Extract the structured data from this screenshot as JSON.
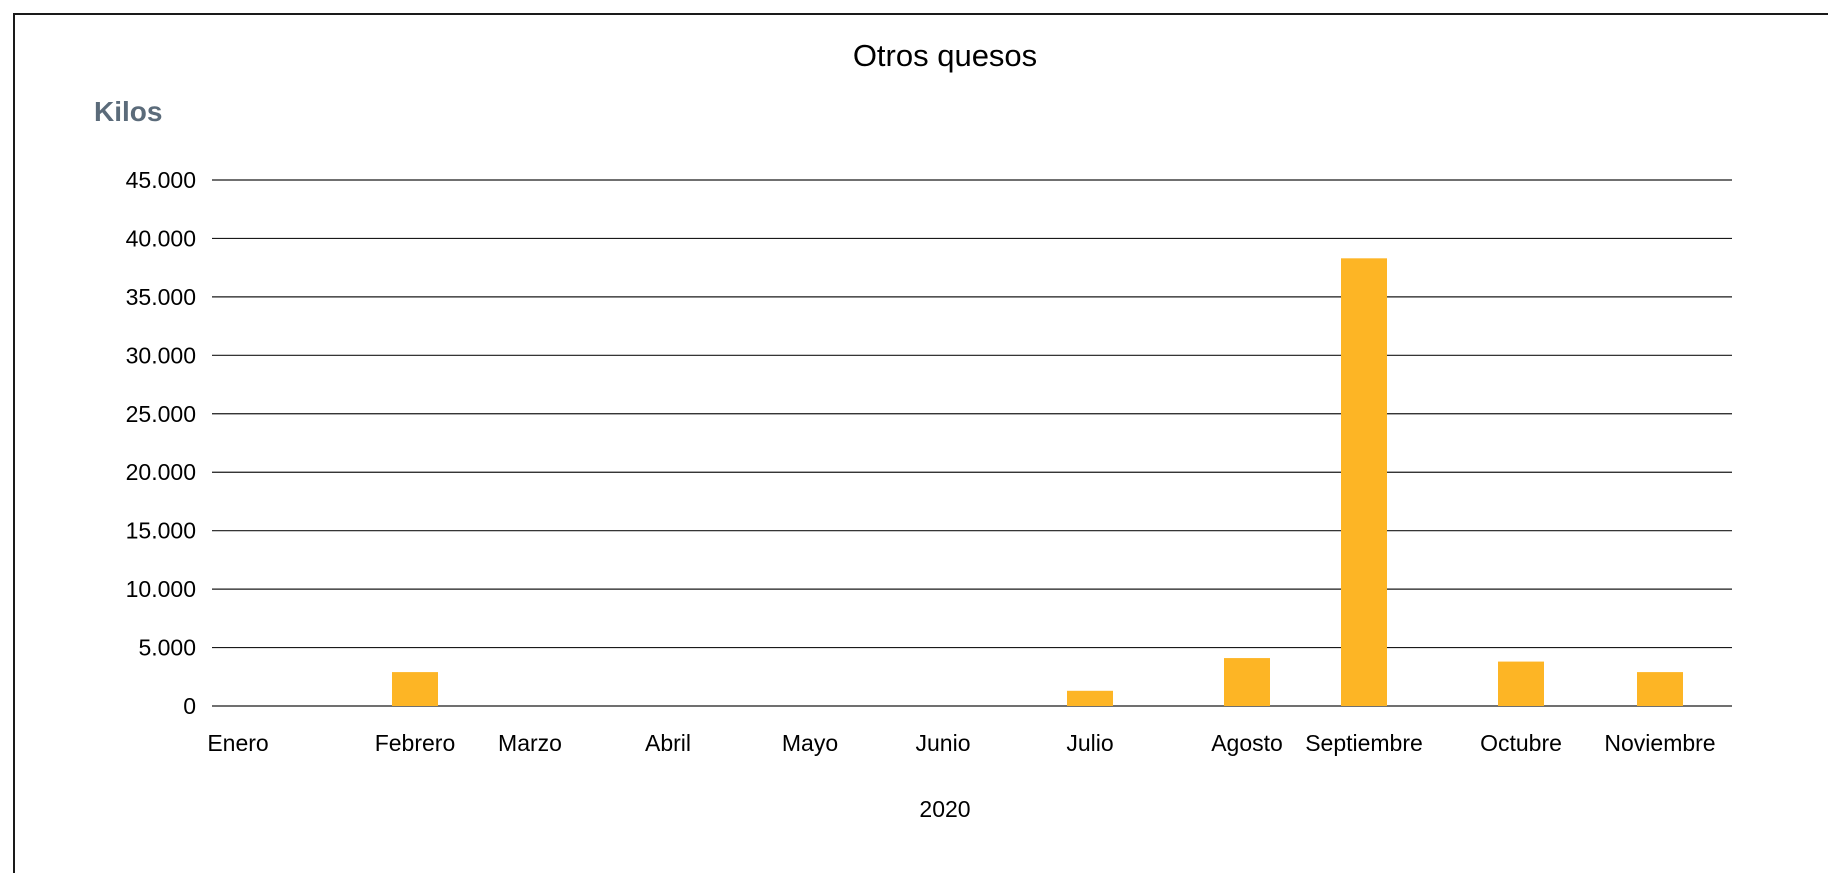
{
  "chart_data": {
    "type": "bar",
    "title": "Otros quesos",
    "ylabel": "Kilos",
    "xlabel": "2020",
    "categories": [
      "Enero",
      "Febrero",
      "Marzo",
      "Abril",
      "Mayo",
      "Junio",
      "Julio",
      "Agosto",
      "Septiembre",
      "Octubre",
      "Noviembre"
    ],
    "series": [
      {
        "values": [
          0,
          2900,
          0,
          0,
          0,
          0,
          1300,
          4100,
          38300,
          3800,
          2900
        ]
      }
    ],
    "ylim": [
      0,
      45000
    ],
    "yticks": [
      0,
      5000,
      10000,
      15000,
      20000,
      25000,
      30000,
      35000,
      40000,
      45000
    ],
    "ytick_labels": [
      "0",
      "5.000",
      "10.000",
      "15.000",
      "20.000",
      "25.000",
      "30.000",
      "35.000",
      "40.000",
      "45.000"
    ],
    "grid": true,
    "legend": "none",
    "bar_color": "#FDB525"
  }
}
